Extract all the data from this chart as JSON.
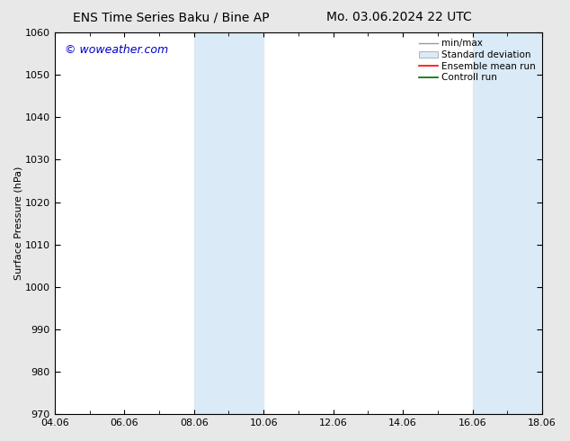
{
  "title_left": "ENS Time Series Baku / Bine AP",
  "title_right": "Mo. 03.06.2024 22 UTC",
  "ylabel": "Surface Pressure (hPa)",
  "xlabel": "",
  "ylim": [
    970,
    1060
  ],
  "yticks": [
    970,
    980,
    990,
    1000,
    1010,
    1020,
    1030,
    1040,
    1050,
    1060
  ],
  "xtick_labels": [
    "04.06",
    "06.06",
    "08.06",
    "10.06",
    "12.06",
    "14.06",
    "16.06",
    "18.06"
  ],
  "xtick_positions": [
    0,
    2,
    4,
    6,
    8,
    10,
    12,
    14
  ],
  "xmin": 0,
  "xmax": 14,
  "shaded_bands": [
    {
      "x_start": 4.0,
      "x_end": 6.0
    },
    {
      "x_start": 12.0,
      "x_end": 14.0
    }
  ],
  "shade_color": "#daeaf7",
  "bg_color": "#e8e8e8",
  "plot_bg_color": "#ffffff",
  "watermark_text": "© woweather.com",
  "watermark_color": "#0000cc",
  "watermark_fontsize": 9,
  "legend_labels": [
    "min/max",
    "Standard deviation",
    "Ensemble mean run",
    "Controll run"
  ],
  "legend_line_color": "#999999",
  "legend_shade_color": "#daeaf7",
  "legend_red": "#ff0000",
  "legend_green": "#006600",
  "title_fontsize": 10,
  "tick_fontsize": 8,
  "ylabel_fontsize": 8,
  "legend_fontsize": 7.5
}
